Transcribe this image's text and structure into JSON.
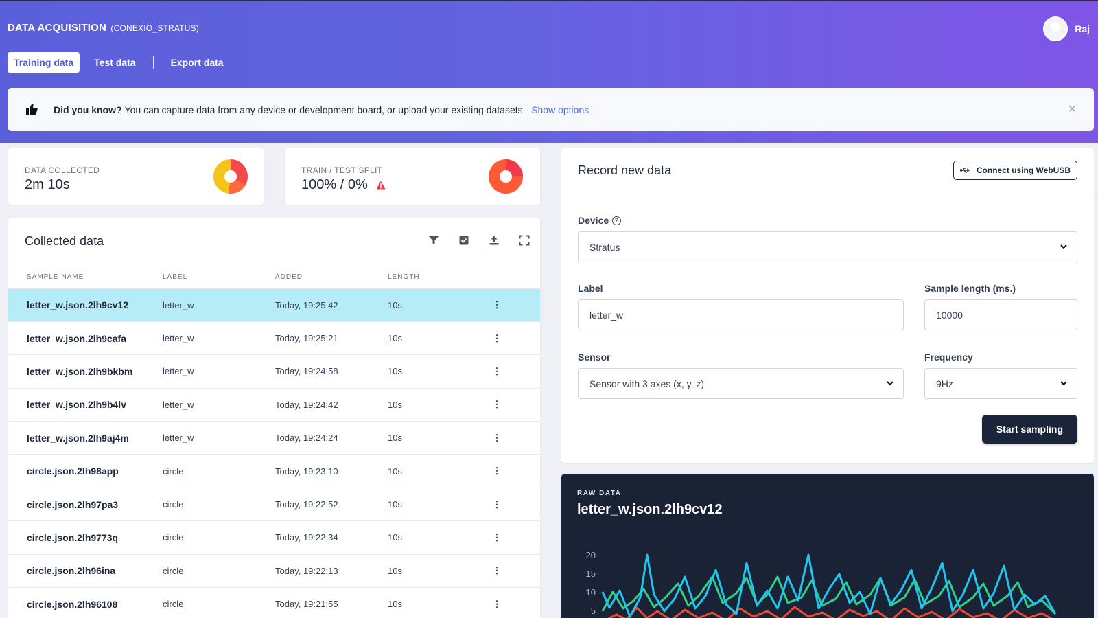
{
  "header": {
    "title": "DATA ACQUISITION",
    "project": "(CONEXIO_STRATUS)",
    "user_name": "Raj",
    "tabs": [
      "Training data",
      "Test data",
      "Export data"
    ]
  },
  "banner": {
    "bold": "Did you know?",
    "text": "You can capture data from any device or development board, or upload your existing datasets -",
    "link": "Show options",
    "close": "×"
  },
  "stats": {
    "data_collected_label": "DATA COLLECTED",
    "data_collected_value": "2m 10s",
    "split_label": "TRAIN / TEST SPLIT",
    "split_value": "100% / 0%"
  },
  "collected": {
    "title": "Collected data",
    "columns": [
      "SAMPLE NAME",
      "LABEL",
      "ADDED",
      "LENGTH"
    ],
    "rows": [
      {
        "name": "letter_w.json.2lh9cv12",
        "label": "letter_w",
        "added": "Today, 19:25:42",
        "length": "10s"
      },
      {
        "name": "letter_w.json.2lh9cafa",
        "label": "letter_w",
        "added": "Today, 19:25:21",
        "length": "10s"
      },
      {
        "name": "letter_w.json.2lh9bkbm",
        "label": "letter_w",
        "added": "Today, 19:24:58",
        "length": "10s"
      },
      {
        "name": "letter_w.json.2lh9b4lv",
        "label": "letter_w",
        "added": "Today, 19:24:42",
        "length": "10s"
      },
      {
        "name": "letter_w.json.2lh9aj4m",
        "label": "letter_w",
        "added": "Today, 19:24:24",
        "length": "10s"
      },
      {
        "name": "circle.json.2lh98app",
        "label": "circle",
        "added": "Today, 19:23:10",
        "length": "10s"
      },
      {
        "name": "circle.json.2lh97pa3",
        "label": "circle",
        "added": "Today, 19:22:52",
        "length": "10s"
      },
      {
        "name": "circle.json.2lh9773q",
        "label": "circle",
        "added": "Today, 19:22:34",
        "length": "10s"
      },
      {
        "name": "circle.json.2lh96ina",
        "label": "circle",
        "added": "Today, 19:22:13",
        "length": "10s"
      },
      {
        "name": "circle.json.2lh96108",
        "label": "circle",
        "added": "Today, 19:21:55",
        "length": "10s"
      }
    ]
  },
  "record": {
    "title": "Record new data",
    "webusb": "Connect using WebUSB",
    "device_label": "Device",
    "device_value": "Stratus",
    "label_label": "Label",
    "label_value": "letter_w",
    "length_label": "Sample length (ms.)",
    "length_value": "10000",
    "sensor_label": "Sensor",
    "sensor_value": "Sensor with 3 axes (x, y, z)",
    "frequency_label": "Frequency",
    "frequency_value": "9Hz",
    "start_button": "Start sampling"
  },
  "raw": {
    "label": "RAW DATA",
    "title": "letter_w.json.2lh9cv12",
    "y_ticks": [
      "20",
      "15",
      "10",
      "5"
    ]
  },
  "colors": {
    "accent": "#5b5fd9",
    "selected_row": "#b6ecf7",
    "series_cyan": "#22c5f0",
    "series_green": "#2fd08a",
    "series_red": "#ef4a2f"
  }
}
